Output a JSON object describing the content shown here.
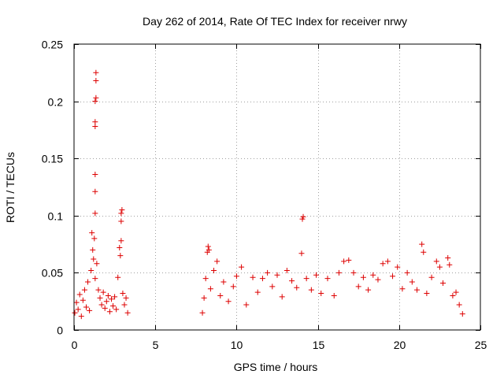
{
  "chart_data": {
    "type": "scatter",
    "title": "Day 262 of 2014, Rate Of TEC Index for receiver nrwy",
    "xlabel": "GPS time / hours",
    "ylabel": "ROTI / TECUs",
    "xlim": [
      0,
      25
    ],
    "ylim": [
      0,
      0.25
    ],
    "xticks": [
      0,
      5,
      10,
      15,
      20,
      25
    ],
    "yticks": [
      0,
      0.05,
      0.1,
      0.15,
      0.2,
      0.25
    ],
    "xtick_labels": [
      "0",
      "5",
      "10",
      "15",
      "20",
      "25"
    ],
    "ytick_labels": [
      "0",
      "0.05",
      "0.1",
      "0.15",
      "0.2",
      "0.25"
    ],
    "grid": true,
    "marker": "+",
    "series": [
      {
        "name": "ROTI",
        "color": "#dd0000",
        "points": [
          {
            "x": 0.05,
            "y": 0.015
          },
          {
            "x": 0.15,
            "y": 0.024
          },
          {
            "x": 0.25,
            "y": 0.018
          },
          {
            "x": 0.35,
            "y": 0.031
          },
          {
            "x": 0.45,
            "y": 0.012
          },
          {
            "x": 0.55,
            "y": 0.026
          },
          {
            "x": 0.65,
            "y": 0.035
          },
          {
            "x": 0.75,
            "y": 0.02
          },
          {
            "x": 0.85,
            "y": 0.042
          },
          {
            "x": 0.95,
            "y": 0.017
          },
          {
            "x": 1.05,
            "y": 0.052
          },
          {
            "x": 1.1,
            "y": 0.085
          },
          {
            "x": 1.15,
            "y": 0.07
          },
          {
            "x": 1.2,
            "y": 0.062
          },
          {
            "x": 1.25,
            "y": 0.08
          },
          {
            "x": 1.3,
            "y": 0.045
          },
          {
            "x": 1.3,
            "y": 0.102
          },
          {
            "x": 1.3,
            "y": 0.121
          },
          {
            "x": 1.3,
            "y": 0.136
          },
          {
            "x": 1.3,
            "y": 0.178
          },
          {
            "x": 1.3,
            "y": 0.182
          },
          {
            "x": 1.3,
            "y": 0.2
          },
          {
            "x": 1.35,
            "y": 0.203
          },
          {
            "x": 1.35,
            "y": 0.218
          },
          {
            "x": 1.35,
            "y": 0.225
          },
          {
            "x": 1.4,
            "y": 0.058
          },
          {
            "x": 1.5,
            "y": 0.035
          },
          {
            "x": 1.6,
            "y": 0.028
          },
          {
            "x": 1.7,
            "y": 0.022
          },
          {
            "x": 1.8,
            "y": 0.033
          },
          {
            "x": 1.9,
            "y": 0.019
          },
          {
            "x": 2.0,
            "y": 0.025
          },
          {
            "x": 2.1,
            "y": 0.03
          },
          {
            "x": 2.2,
            "y": 0.016
          },
          {
            "x": 2.3,
            "y": 0.027
          },
          {
            "x": 2.4,
            "y": 0.021
          },
          {
            "x": 2.5,
            "y": 0.029
          },
          {
            "x": 2.6,
            "y": 0.018
          },
          {
            "x": 2.7,
            "y": 0.046
          },
          {
            "x": 2.8,
            "y": 0.072
          },
          {
            "x": 2.85,
            "y": 0.065
          },
          {
            "x": 2.9,
            "y": 0.078
          },
          {
            "x": 2.9,
            "y": 0.095
          },
          {
            "x": 2.9,
            "y": 0.102
          },
          {
            "x": 2.95,
            "y": 0.105
          },
          {
            "x": 3.0,
            "y": 0.032
          },
          {
            "x": 3.1,
            "y": 0.022
          },
          {
            "x": 3.2,
            "y": 0.028
          },
          {
            "x": 3.3,
            "y": 0.015
          },
          {
            "x": 7.9,
            "y": 0.015
          },
          {
            "x": 8.0,
            "y": 0.028
          },
          {
            "x": 8.1,
            "y": 0.045
          },
          {
            "x": 8.2,
            "y": 0.068
          },
          {
            "x": 8.25,
            "y": 0.073
          },
          {
            "x": 8.3,
            "y": 0.07
          },
          {
            "x": 8.4,
            "y": 0.036
          },
          {
            "x": 8.6,
            "y": 0.052
          },
          {
            "x": 8.8,
            "y": 0.06
          },
          {
            "x": 9.0,
            "y": 0.03
          },
          {
            "x": 9.2,
            "y": 0.042
          },
          {
            "x": 9.5,
            "y": 0.025
          },
          {
            "x": 9.8,
            "y": 0.038
          },
          {
            "x": 10.0,
            "y": 0.047
          },
          {
            "x": 10.3,
            "y": 0.055
          },
          {
            "x": 10.6,
            "y": 0.022
          },
          {
            "x": 11.0,
            "y": 0.046
          },
          {
            "x": 11.3,
            "y": 0.033
          },
          {
            "x": 11.6,
            "y": 0.045
          },
          {
            "x": 11.9,
            "y": 0.05
          },
          {
            "x": 12.2,
            "y": 0.038
          },
          {
            "x": 12.5,
            "y": 0.048
          },
          {
            "x": 12.8,
            "y": 0.029
          },
          {
            "x": 13.1,
            "y": 0.052
          },
          {
            "x": 13.4,
            "y": 0.043
          },
          {
            "x": 13.7,
            "y": 0.037
          },
          {
            "x": 14.0,
            "y": 0.067
          },
          {
            "x": 14.05,
            "y": 0.097
          },
          {
            "x": 14.1,
            "y": 0.099
          },
          {
            "x": 14.3,
            "y": 0.045
          },
          {
            "x": 14.6,
            "y": 0.035
          },
          {
            "x": 14.9,
            "y": 0.048
          },
          {
            "x": 15.2,
            "y": 0.032
          },
          {
            "x": 15.6,
            "y": 0.045
          },
          {
            "x": 16.0,
            "y": 0.03
          },
          {
            "x": 16.3,
            "y": 0.05
          },
          {
            "x": 16.6,
            "y": 0.06
          },
          {
            "x": 16.9,
            "y": 0.061
          },
          {
            "x": 17.2,
            "y": 0.05
          },
          {
            "x": 17.5,
            "y": 0.038
          },
          {
            "x": 17.8,
            "y": 0.046
          },
          {
            "x": 18.1,
            "y": 0.035
          },
          {
            "x": 18.4,
            "y": 0.048
          },
          {
            "x": 18.7,
            "y": 0.044
          },
          {
            "x": 19.0,
            "y": 0.058
          },
          {
            "x": 19.3,
            "y": 0.06
          },
          {
            "x": 19.6,
            "y": 0.047
          },
          {
            "x": 19.9,
            "y": 0.055
          },
          {
            "x": 20.2,
            "y": 0.036
          },
          {
            "x": 20.5,
            "y": 0.05
          },
          {
            "x": 20.8,
            "y": 0.042
          },
          {
            "x": 21.1,
            "y": 0.035
          },
          {
            "x": 21.4,
            "y": 0.075
          },
          {
            "x": 21.5,
            "y": 0.068
          },
          {
            "x": 21.7,
            "y": 0.032
          },
          {
            "x": 22.0,
            "y": 0.046
          },
          {
            "x": 22.3,
            "y": 0.06
          },
          {
            "x": 22.5,
            "y": 0.055
          },
          {
            "x": 22.7,
            "y": 0.041
          },
          {
            "x": 23.0,
            "y": 0.063
          },
          {
            "x": 23.1,
            "y": 0.057
          },
          {
            "x": 23.3,
            "y": 0.03
          },
          {
            "x": 23.5,
            "y": 0.033
          },
          {
            "x": 23.7,
            "y": 0.022
          },
          {
            "x": 23.9,
            "y": 0.014
          }
        ]
      }
    ]
  }
}
